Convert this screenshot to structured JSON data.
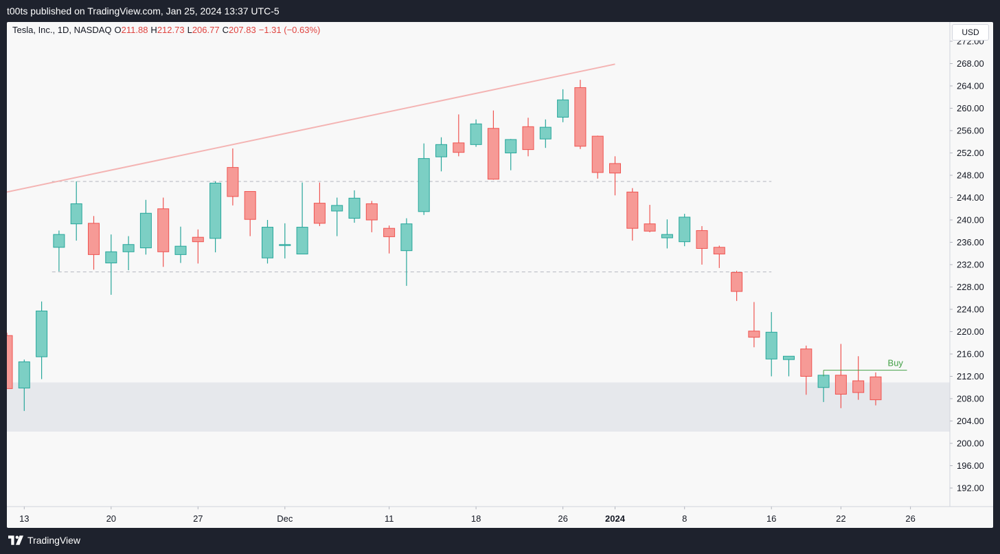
{
  "header": {
    "publish_line": "t00ts published on TradingView.com, Jan 25, 2024 13:37 UTC-5"
  },
  "footer": {
    "brand": "TradingView",
    "logo_icon": "tradingview-logo-icon"
  },
  "legend": {
    "symbol": "Tesla, Inc., 1D, NASDAQ",
    "open_label": "O",
    "open": "211.88",
    "high_label": "H",
    "high": "212.73",
    "low_label": "L",
    "low": "206.77",
    "close_label": "C",
    "close": "207.83",
    "change": "−1.31 (−0.63%)"
  },
  "currency_button": "USD",
  "colors": {
    "up": "#26a69a",
    "down": "#ef5350",
    "trendline": "#f4b4b3",
    "zone": "#e6e8ec",
    "buy": "#43a047",
    "background": "#f8f8f8",
    "frame": "#1e222d"
  },
  "chart_data": {
    "type": "candlestick",
    "title": "",
    "xlabel": "",
    "ylabel": "",
    "ylim": [
      188,
      273
    ],
    "y_ticks": [
      "272.00",
      "268.00",
      "264.00",
      "260.00",
      "256.00",
      "252.00",
      "248.00",
      "244.00",
      "240.00",
      "236.00",
      "232.00",
      "228.00",
      "224.00",
      "220.00",
      "216.00",
      "212.00",
      "208.00",
      "204.00",
      "200.00",
      "196.00",
      "192.00"
    ],
    "x_ticks": [
      {
        "label": "13",
        "day": 1
      },
      {
        "label": "20",
        "day": 6
      },
      {
        "label": "27",
        "day": 11
      },
      {
        "label": "Dec",
        "day": 16,
        "bold": false
      },
      {
        "label": "11",
        "day": 22
      },
      {
        "label": "18",
        "day": 27
      },
      {
        "label": "26",
        "day": 32
      },
      {
        "label": "2024",
        "day": 35,
        "bold": true
      },
      {
        "label": "8",
        "day": 39
      },
      {
        "label": "16",
        "day": 44
      },
      {
        "label": "22",
        "day": 48
      },
      {
        "label": "26",
        "day": 52
      }
    ],
    "candles": [
      {
        "day": 0,
        "o": 219.3,
        "h": 219.8,
        "l": 209.8,
        "c": 209.8
      },
      {
        "day": 1,
        "o": 209.9,
        "h": 215.0,
        "l": 205.8,
        "c": 214.6
      },
      {
        "day": 2,
        "o": 215.5,
        "h": 225.4,
        "l": 211.5,
        "c": 223.7
      },
      {
        "day": 3,
        "o": 235.1,
        "h": 238.1,
        "l": 230.8,
        "c": 237.4
      },
      {
        "day": 4,
        "o": 239.3,
        "h": 246.9,
        "l": 236.3,
        "c": 242.9
      },
      {
        "day": 5,
        "o": 239.4,
        "h": 240.7,
        "l": 231.1,
        "c": 233.8
      },
      {
        "day": 6,
        "o": 232.3,
        "h": 237.4,
        "l": 226.6,
        "c": 234.3
      },
      {
        "day": 7,
        "o": 234.3,
        "h": 237.1,
        "l": 231.0,
        "c": 235.6
      },
      {
        "day": 8,
        "o": 235.0,
        "h": 243.6,
        "l": 233.8,
        "c": 241.2
      },
      {
        "day": 9,
        "o": 242.0,
        "h": 244.0,
        "l": 231.6,
        "c": 234.3
      },
      {
        "day": 10,
        "o": 233.8,
        "h": 238.8,
        "l": 232.3,
        "c": 235.3
      },
      {
        "day": 11,
        "o": 236.9,
        "h": 238.3,
        "l": 232.2,
        "c": 236.1
      },
      {
        "day": 12,
        "o": 236.7,
        "h": 246.9,
        "l": 234.2,
        "c": 246.6
      },
      {
        "day": 13,
        "o": 249.4,
        "h": 252.8,
        "l": 242.6,
        "c": 244.2
      },
      {
        "day": 14,
        "o": 245.1,
        "h": 245.1,
        "l": 237.1,
        "c": 240.1
      },
      {
        "day": 15,
        "o": 233.2,
        "h": 240.0,
        "l": 232.2,
        "c": 238.7
      },
      {
        "day": 16,
        "o": 235.6,
        "h": 239.4,
        "l": 233.1,
        "c": 235.6
      },
      {
        "day": 17,
        "o": 233.9,
        "h": 246.7,
        "l": 233.9,
        "c": 238.7
      },
      {
        "day": 18,
        "o": 243.0,
        "h": 246.7,
        "l": 238.9,
        "c": 239.4
      },
      {
        "day": 19,
        "o": 241.6,
        "h": 244.0,
        "l": 237.1,
        "c": 242.6
      },
      {
        "day": 20,
        "o": 240.3,
        "h": 245.3,
        "l": 239.5,
        "c": 243.9
      },
      {
        "day": 21,
        "o": 242.9,
        "h": 243.4,
        "l": 237.8,
        "c": 240.0
      },
      {
        "day": 22,
        "o": 238.5,
        "h": 239.0,
        "l": 234.0,
        "c": 237.0
      },
      {
        "day": 23,
        "o": 234.5,
        "h": 240.3,
        "l": 228.2,
        "c": 239.3
      },
      {
        "day": 24,
        "o": 241.5,
        "h": 253.7,
        "l": 240.9,
        "c": 251.0
      },
      {
        "day": 25,
        "o": 251.3,
        "h": 254.8,
        "l": 248.7,
        "c": 253.5
      },
      {
        "day": 26,
        "o": 253.8,
        "h": 258.9,
        "l": 251.4,
        "c": 252.1
      },
      {
        "day": 27,
        "o": 253.5,
        "h": 258.0,
        "l": 253.1,
        "c": 257.2
      },
      {
        "day": 28,
        "o": 256.4,
        "h": 259.6,
        "l": 247.2,
        "c": 247.3
      },
      {
        "day": 29,
        "o": 252.0,
        "h": 254.5,
        "l": 248.9,
        "c": 254.4
      },
      {
        "day": 30,
        "o": 256.7,
        "h": 258.3,
        "l": 251.4,
        "c": 252.6
      },
      {
        "day": 31,
        "o": 254.5,
        "h": 258.0,
        "l": 252.9,
        "c": 256.6
      },
      {
        "day": 32,
        "o": 258.4,
        "h": 263.4,
        "l": 257.5,
        "c": 261.5
      },
      {
        "day": 33,
        "o": 263.7,
        "h": 265.1,
        "l": 252.7,
        "c": 253.2
      },
      {
        "day": 34,
        "o": 255.0,
        "h": 255.1,
        "l": 247.4,
        "c": 248.5
      },
      {
        "day": 35,
        "o": 250.1,
        "h": 251.4,
        "l": 244.4,
        "c": 248.4
      },
      {
        "day": 36,
        "o": 245.0,
        "h": 245.7,
        "l": 236.3,
        "c": 238.5
      },
      {
        "day": 37,
        "o": 239.3,
        "h": 242.7,
        "l": 237.8,
        "c": 238.0
      },
      {
        "day": 38,
        "o": 236.8,
        "h": 240.1,
        "l": 234.9,
        "c": 237.4
      },
      {
        "day": 39,
        "o": 236.1,
        "h": 241.1,
        "l": 235.3,
        "c": 240.5
      },
      {
        "day": 40,
        "o": 238.1,
        "h": 238.9,
        "l": 232.0,
        "c": 234.9
      },
      {
        "day": 41,
        "o": 235.1,
        "h": 235.4,
        "l": 231.4,
        "c": 233.9
      },
      {
        "day": 42,
        "o": 230.6,
        "h": 230.9,
        "l": 225.5,
        "c": 227.2
      },
      {
        "day": 43,
        "o": 220.1,
        "h": 225.3,
        "l": 217.2,
        "c": 219.0
      },
      {
        "day": 44,
        "o": 215.1,
        "h": 223.5,
        "l": 212.0,
        "c": 219.9
      },
      {
        "day": 45,
        "o": 215.0,
        "h": 215.6,
        "l": 212.0,
        "c": 215.6
      },
      {
        "day": 46,
        "o": 216.9,
        "h": 217.5,
        "l": 208.7,
        "c": 212.0
      },
      {
        "day": 47,
        "o": 210.0,
        "h": 212.1,
        "l": 207.4,
        "c": 212.2
      },
      {
        "day": 48,
        "o": 212.2,
        "h": 217.8,
        "l": 206.3,
        "c": 208.8
      },
      {
        "day": 49,
        "o": 211.2,
        "h": 215.6,
        "l": 207.8,
        "c": 209.1
      },
      {
        "day": 50,
        "o": 211.9,
        "h": 212.7,
        "l": 206.8,
        "c": 207.8
      }
    ],
    "annotations": {
      "trendline": {
        "from": {
          "day": -0.3,
          "price": 244.8
        },
        "to": {
          "day": 35.0,
          "price": 267.9
        }
      },
      "resistance": {
        "price": 246.9,
        "from_day": 2.6,
        "to_day": 44.0,
        "style": "dashed"
      },
      "support": {
        "price": 230.7,
        "from_day": 2.6,
        "to_day": 44.0,
        "style": "dashed"
      },
      "demand_zone": {
        "from_price": 202.1,
        "to_price": 210.9
      },
      "buy_line": {
        "price": 213.1,
        "from_day": 47,
        "to_day": 51.8,
        "label": "Buy"
      }
    }
  }
}
